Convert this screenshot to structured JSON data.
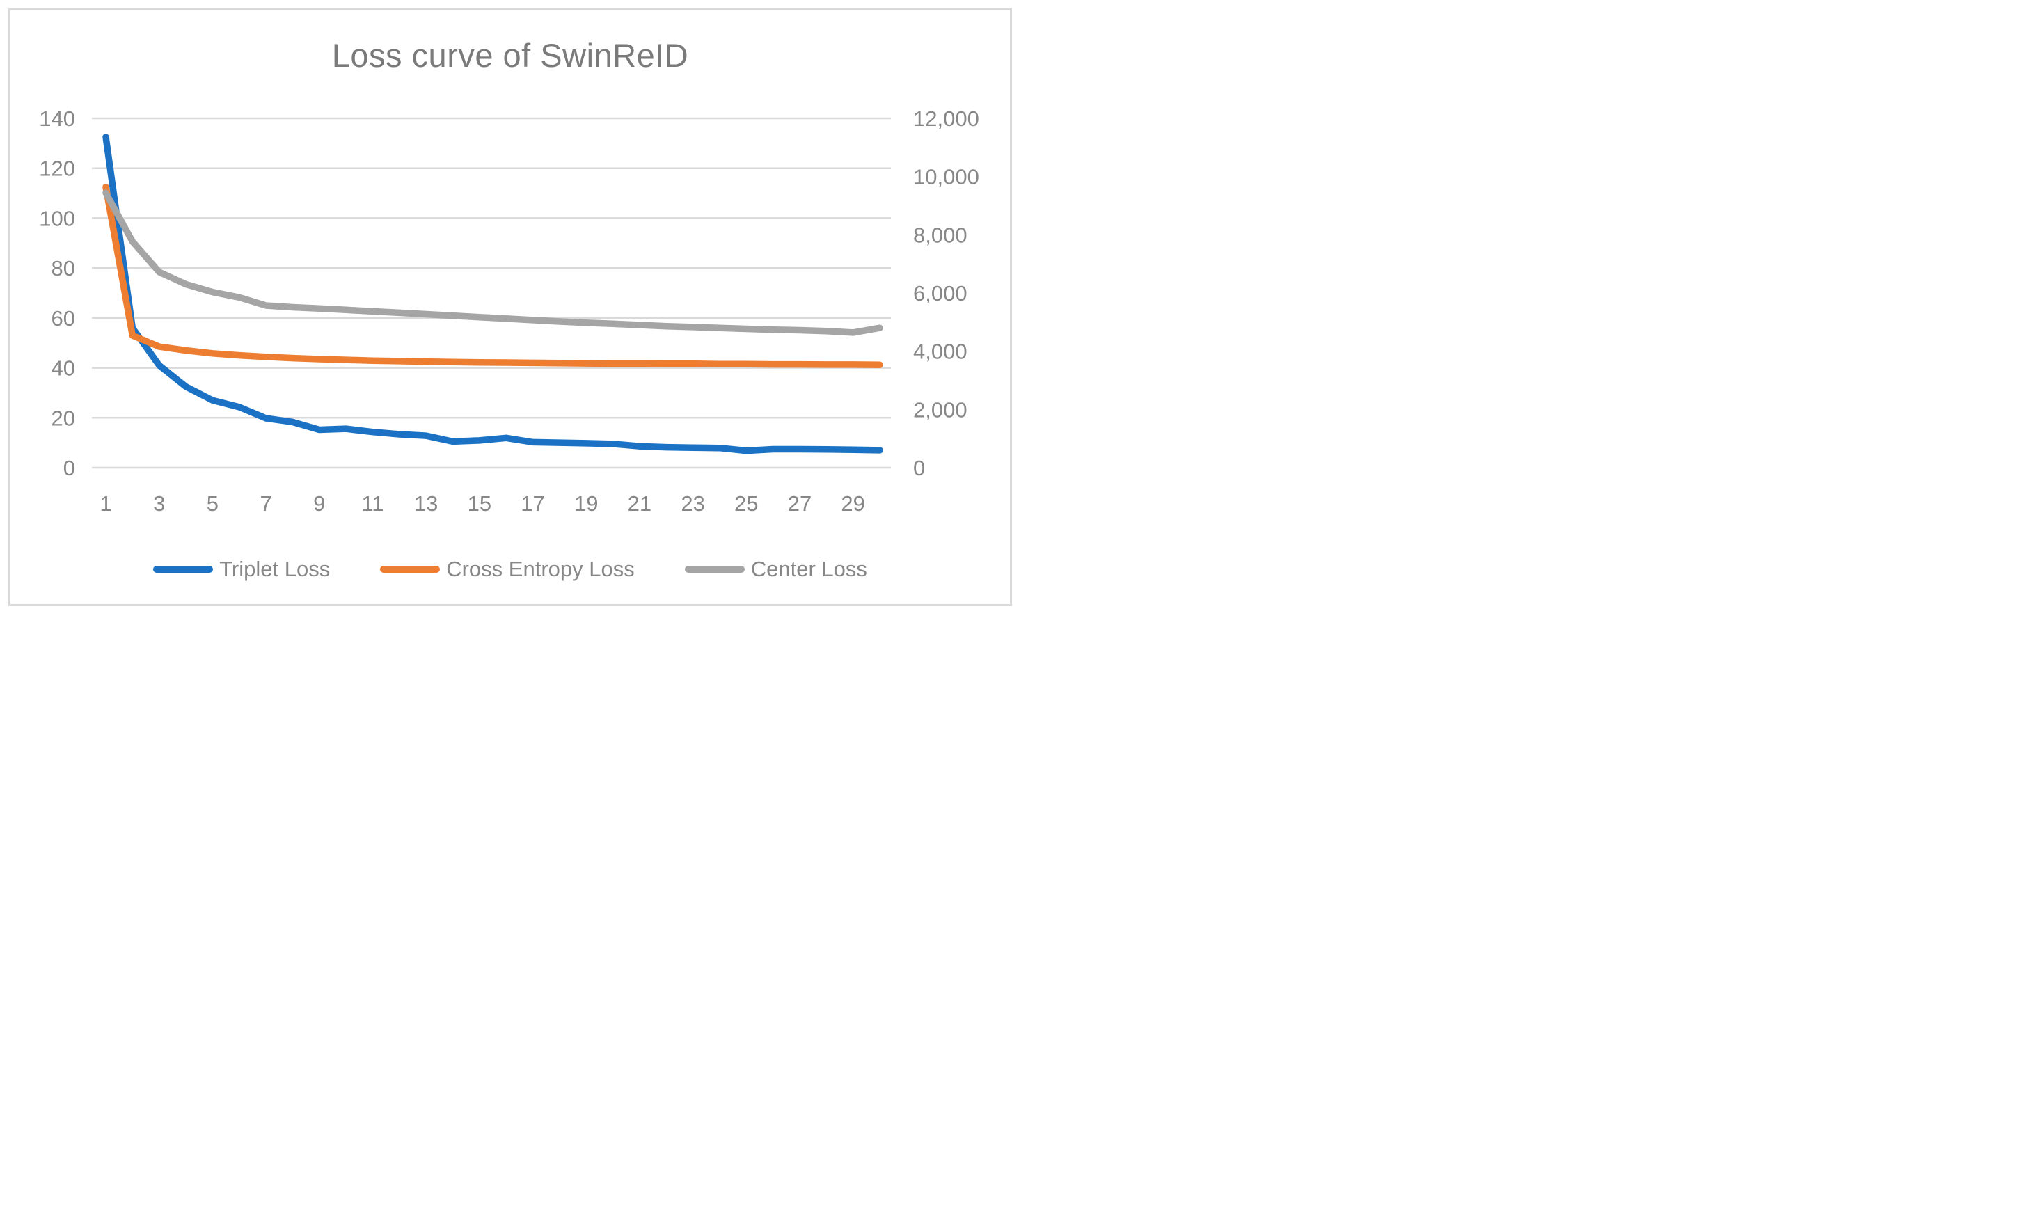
{
  "title": "Loss curve of SwinReID",
  "colors": {
    "triplet_blue": "#1B72C4",
    "cross_entropy_orange": "#ED7D31",
    "center_gray": "#A5A5A5",
    "gridline": "#D9D9D9",
    "tick_text": "#878787",
    "title_text": "#7A7A7A",
    "frame_border": "#D9D9D9",
    "background": "#FFFFFF"
  },
  "legend": {
    "items": [
      {
        "label": "Triplet Loss",
        "color": "#1B72C4"
      },
      {
        "label": "Cross Entropy Loss",
        "color": "#ED7D31"
      },
      {
        "label": "Center Loss",
        "color": "#A5A5A5"
      }
    ]
  },
  "chart_data": {
    "type": "line",
    "title": "Loss curve of SwinReID",
    "xlabel": "",
    "ylabel_left": "",
    "ylabel_right": "",
    "grid": true,
    "legend_position": "bottom",
    "x": [
      1,
      2,
      3,
      4,
      5,
      6,
      7,
      8,
      9,
      10,
      11,
      12,
      13,
      14,
      15,
      16,
      17,
      18,
      19,
      20,
      21,
      22,
      23,
      24,
      25,
      26,
      27,
      28,
      29,
      30
    ],
    "x_tick_labels": [
      "1",
      "3",
      "5",
      "7",
      "9",
      "11",
      "13",
      "15",
      "17",
      "19",
      "21",
      "23",
      "25",
      "27",
      "29"
    ],
    "left_axis": {
      "min": 0,
      "max": 140,
      "step": 20,
      "tick_labels": [
        "0",
        "20",
        "40",
        "60",
        "80",
        "100",
        "120",
        "140"
      ]
    },
    "right_axis": {
      "min": 0,
      "max": 12000,
      "step": 2000,
      "tick_labels": [
        "0",
        "2,000",
        "4,000",
        "6,000",
        "8,000",
        "10,000",
        "12,000"
      ]
    },
    "series": [
      {
        "name": "Triplet Loss",
        "axis": "left",
        "color": "#1B72C4",
        "values": [
          132.5,
          56,
          41,
          32.5,
          27,
          24.3,
          19.8,
          18.3,
          15.2,
          15.6,
          14.3,
          13.4,
          12.8,
          10.5,
          10.9,
          11.9,
          10.2,
          10,
          9.8,
          9.5,
          8.6,
          8.2,
          8,
          7.9,
          6.8,
          7.4,
          7.4,
          7.3,
          7.2,
          7
        ]
      },
      {
        "name": "Cross Entropy Loss",
        "axis": "left",
        "color": "#ED7D31",
        "values": [
          112.5,
          53,
          48.5,
          47,
          45.8,
          45,
          44.4,
          43.9,
          43.5,
          43.2,
          42.9,
          42.7,
          42.5,
          42.3,
          42.2,
          42.1,
          42,
          41.9,
          41.8,
          41.7,
          41.7,
          41.6,
          41.6,
          41.5,
          41.5,
          41.4,
          41.4,
          41.3,
          41.3,
          41.2
        ]
      },
      {
        "name": "Center Loss",
        "axis": "right",
        "color": "#A5A5A5",
        "values": [
          9440,
          7770,
          6720,
          6300,
          6030,
          5850,
          5570,
          5510,
          5470,
          5420,
          5370,
          5320,
          5270,
          5220,
          5170,
          5120,
          5070,
          5020,
          4980,
          4940,
          4900,
          4860,
          4830,
          4800,
          4770,
          4740,
          4720,
          4690,
          4640,
          4800
        ]
      }
    ]
  }
}
